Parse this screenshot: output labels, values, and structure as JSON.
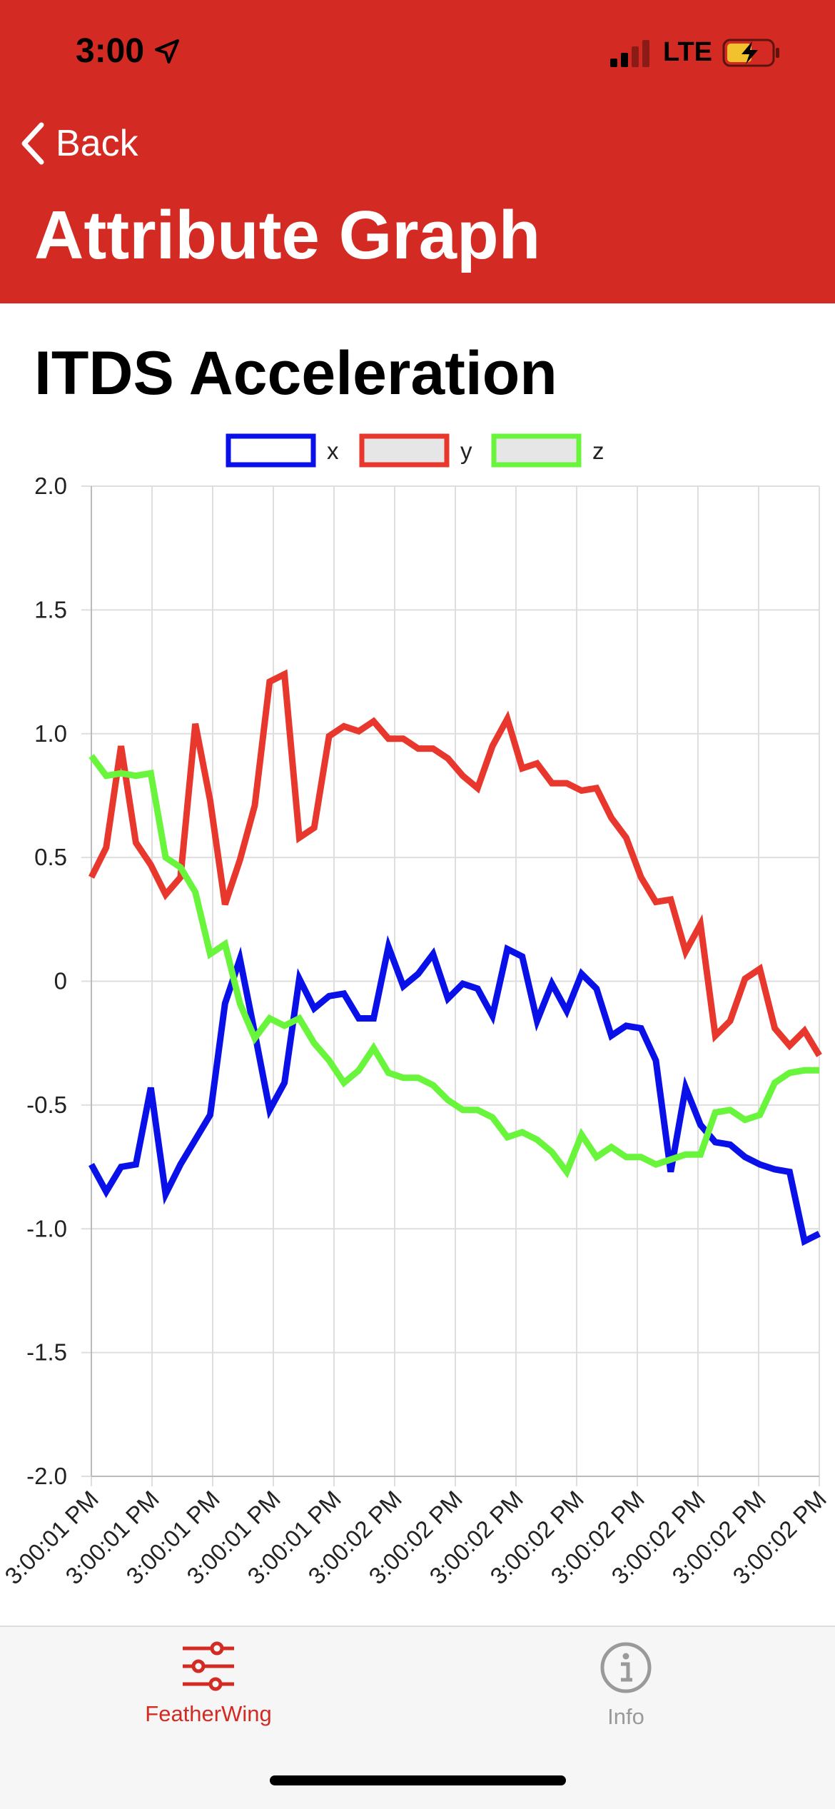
{
  "status": {
    "time": "3:00",
    "network": "LTE"
  },
  "nav": {
    "back_label": "Back",
    "title": "Attribute Graph"
  },
  "colors": {
    "header": "#d32b23",
    "x": "#0a10e8",
    "y": "#e8372c",
    "z": "#69f53b",
    "tab_active": "#d32b23",
    "tab_inactive": "#9a9a9a"
  },
  "tabs": [
    {
      "label": "FeatherWing",
      "icon": "sliders-icon",
      "active": true
    },
    {
      "label": "Info",
      "icon": "info-icon",
      "active": false
    }
  ],
  "chart_data": {
    "type": "line",
    "title": "ITDS Acceleration",
    "ylim": [
      -2.0,
      2.0
    ],
    "yticks": [
      "2.0",
      "1.5",
      "1.0",
      "0.5",
      "0",
      "-0.5",
      "-1.0",
      "-1.5",
      "-2.0"
    ],
    "xticks": [
      "3:00:01 PM",
      "3:00:01 PM",
      "3:00:01 PM",
      "3:00:01 PM",
      "3:00:01 PM",
      "3:00:02 PM",
      "3:00:02 PM",
      "3:00:02 PM",
      "3:00:02 PM",
      "3:00:02 PM",
      "3:00:02 PM",
      "3:00:02 PM",
      "3:00:02 PM"
    ],
    "grid": true,
    "legend": "top-center",
    "series": [
      {
        "name": "x",
        "values": [
          -0.74,
          -0.85,
          -0.75,
          -0.74,
          -0.43,
          -0.86,
          -0.74,
          -0.64,
          -0.54,
          -0.09,
          0.09,
          -0.21,
          -0.52,
          -0.41,
          0.01,
          -0.11,
          -0.06,
          -0.05,
          -0.15,
          -0.15,
          0.14,
          -0.02,
          0.03,
          0.11,
          -0.07,
          -0.01,
          -0.03,
          -0.14,
          0.13,
          0.1,
          -0.16,
          -0.01,
          -0.12,
          0.03,
          -0.03,
          -0.22,
          -0.18,
          -0.19,
          -0.32,
          -0.77,
          -0.43,
          -0.58,
          -0.65,
          -0.66,
          -0.71,
          -0.74,
          -0.76,
          -0.77,
          -1.05,
          -1.02
        ]
      },
      {
        "name": "y",
        "values": [
          0.42,
          0.54,
          0.95,
          0.56,
          0.47,
          0.35,
          0.42,
          1.04,
          0.73,
          0.31,
          0.49,
          0.71,
          1.21,
          1.24,
          0.58,
          0.62,
          0.99,
          1.03,
          1.01,
          1.05,
          0.98,
          0.98,
          0.94,
          0.94,
          0.9,
          0.83,
          0.78,
          0.95,
          1.06,
          0.86,
          0.88,
          0.8,
          0.8,
          0.77,
          0.78,
          0.66,
          0.58,
          0.42,
          0.32,
          0.33,
          0.12,
          0.23,
          -0.22,
          -0.16,
          0.01,
          0.05,
          -0.19,
          -0.26,
          -0.2,
          -0.3
        ]
      },
      {
        "name": "z",
        "values": [
          0.91,
          0.83,
          0.84,
          0.83,
          0.84,
          0.5,
          0.46,
          0.36,
          0.11,
          0.15,
          -0.09,
          -0.23,
          -0.15,
          -0.18,
          -0.15,
          -0.25,
          -0.32,
          -0.41,
          -0.36,
          -0.27,
          -0.37,
          -0.39,
          -0.39,
          -0.42,
          -0.48,
          -0.52,
          -0.52,
          -0.55,
          -0.63,
          -0.61,
          -0.64,
          -0.69,
          -0.77,
          -0.62,
          -0.71,
          -0.67,
          -0.71,
          -0.71,
          -0.74,
          -0.72,
          -0.7,
          -0.7,
          -0.53,
          -0.52,
          -0.56,
          -0.54,
          -0.41,
          -0.37,
          -0.36,
          -0.36
        ]
      }
    ]
  }
}
